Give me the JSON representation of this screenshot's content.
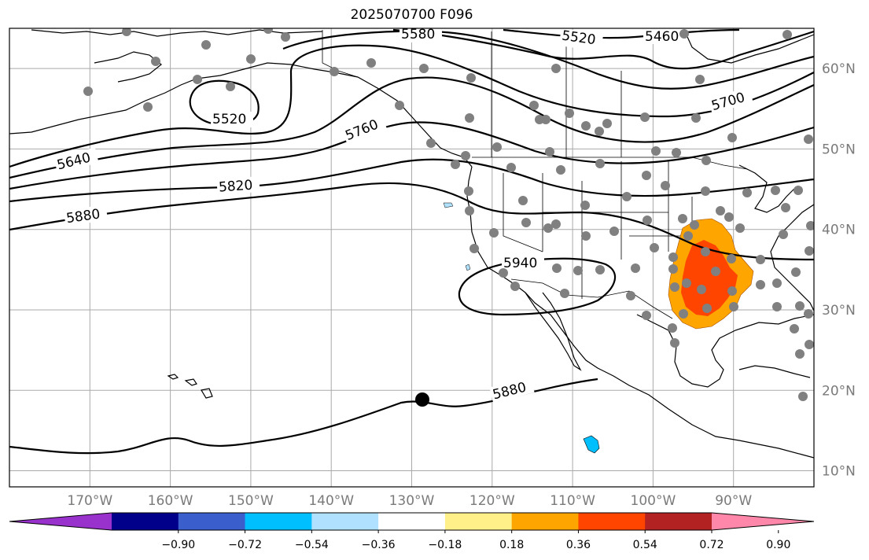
{
  "title": "2025070700 F096",
  "map": {
    "lon_range": [
      -180,
      -80
    ],
    "lat_range": [
      8,
      65
    ],
    "lat_ticks": [
      {
        "value": 10,
        "label": "10°N"
      },
      {
        "value": 20,
        "label": "20°N"
      },
      {
        "value": 30,
        "label": "30°N"
      },
      {
        "value": 40,
        "label": "40°N"
      },
      {
        "value": 50,
        "label": "50°N"
      },
      {
        "value": 60,
        "label": "60°N"
      }
    ],
    "lon_ticks": [
      {
        "value": -170,
        "label": "170°W"
      },
      {
        "value": -160,
        "label": "160°W"
      },
      {
        "value": -150,
        "label": "150°W"
      },
      {
        "value": -140,
        "label": "140°W"
      },
      {
        "value": -130,
        "label": "130°W"
      },
      {
        "value": -120,
        "label": "120°W"
      },
      {
        "value": -110,
        "label": "110°W"
      },
      {
        "value": -100,
        "label": "100°W"
      },
      {
        "value": -90,
        "label": "90°W"
      }
    ],
    "grid": true,
    "contour_color": "#000000",
    "contour_labels": [
      "5460",
      "5520",
      "5580",
      "5520",
      "5640",
      "5700",
      "5760",
      "5820",
      "5880",
      "5940",
      "5880"
    ],
    "station_marker_color": "#808080",
    "highlight_marker_color": "#000000",
    "land_outline_color": "#000000"
  },
  "colorbar": {
    "colors": [
      "#9932cc",
      "#00008b",
      "#3a5fcd",
      "#00bfff",
      "#b0e2ff",
      "#ffffff",
      "#fff08a",
      "#ffa500",
      "#ff4500",
      "#b22222",
      "#ff88aa"
    ],
    "tick_labels": [
      "−0.90",
      "−0.72",
      "−0.54",
      "−0.36",
      "−0.18",
      "0.18",
      "0.36",
      "0.54",
      "0.72",
      "0.90"
    ],
    "extend": "both"
  }
}
